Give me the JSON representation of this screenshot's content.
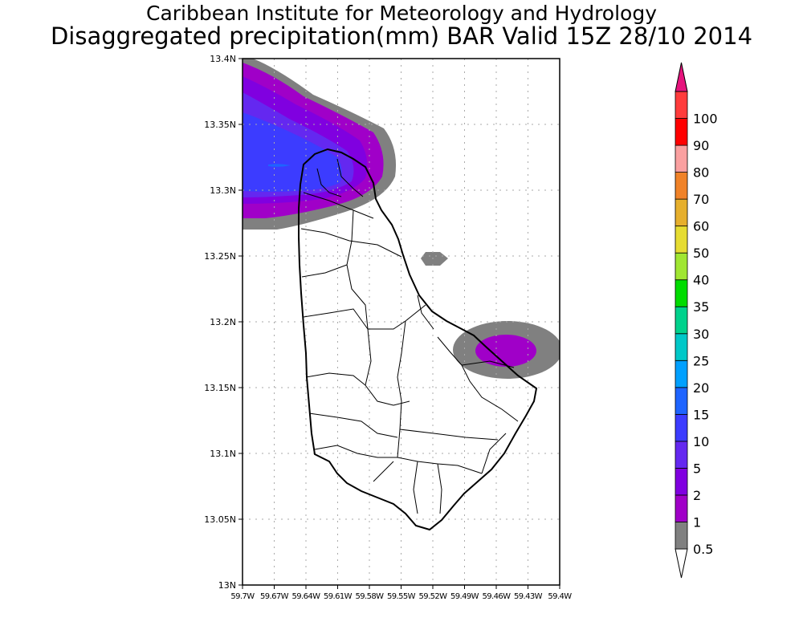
{
  "header": {
    "title_line1": "Caribbean Institute for Meteorology and Hydrology",
    "title_line2": "Disaggregated precipitation(mm) BAR Valid 15Z 28/10 2014"
  },
  "map": {
    "lat_labels": [
      "13.4N",
      "13.35N",
      "13.3N",
      "13.25N",
      "13.2N",
      "13.15N",
      "13.1N",
      "13.05N",
      "13N"
    ],
    "lon_labels": [
      "59.7W",
      "59.67W",
      "59.64W",
      "59.61W",
      "59.58W",
      "59.55W",
      "59.52W",
      "59.49W",
      "59.46W",
      "59.43W",
      "59.4W"
    ],
    "extent": {
      "lon_min": -59.7,
      "lon_max": -59.4,
      "lat_min": 13.0,
      "lat_max": 13.4
    },
    "grid": "dotted"
  },
  "legend": {
    "levels": [
      "0.5",
      "1",
      "2",
      "5",
      "10",
      "15",
      "20",
      "25",
      "30",
      "35",
      "40",
      "50",
      "60",
      "70",
      "80",
      "90",
      "100"
    ],
    "colors": [
      "#808080",
      "#a000c8",
      "#8000e0",
      "#6428f0",
      "#3c3cff",
      "#1e64ff",
      "#00a0ff",
      "#00c8c8",
      "#00d28c",
      "#00dc00",
      "#a0e632",
      "#e6dc32",
      "#e6af2d",
      "#f08228",
      "#faa0a0",
      "#ff0000",
      "#ff3c3c"
    ],
    "over_color": "#e6147d",
    "under_color": "#ffffff"
  }
}
